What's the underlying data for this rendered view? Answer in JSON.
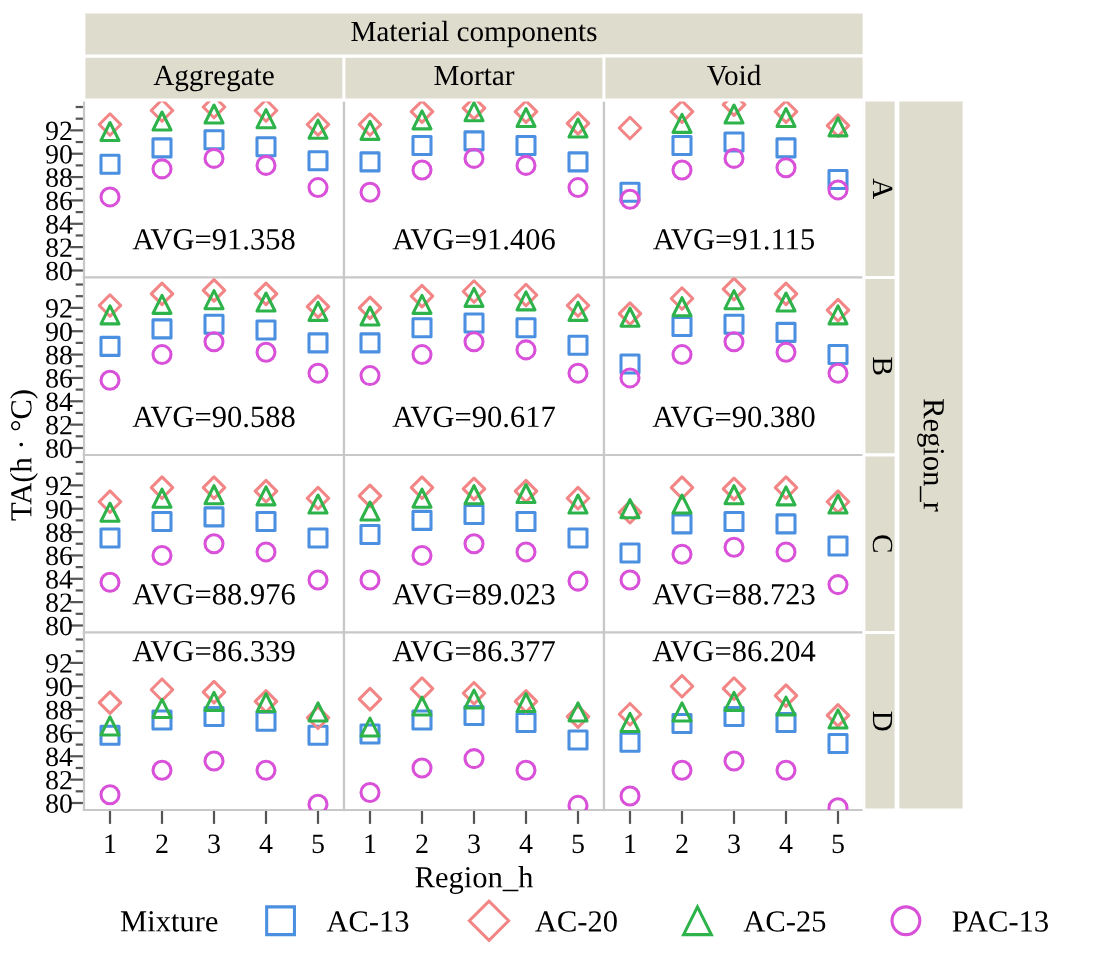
{
  "chart_data": [
    {
      "type": "scatter",
      "title": "Aggregate",
      "x": [
        1,
        2,
        3,
        4,
        5
      ],
      "xlim": [
        0.5,
        5.5
      ],
      "xticks": [
        1,
        2,
        3,
        4,
        5
      ],
      "ylim": [
        79.4,
        94.6
      ],
      "yticks": [
        80,
        {
          "value": 81,
          "label": null
        },
        82,
        {
          "value": 83,
          "label": null
        },
        84,
        {
          "value": 85,
          "label": null
        },
        86,
        {
          "value": 87,
          "label": null
        },
        88,
        {
          "value": 89,
          "label": null
        },
        90,
        {
          "value": 91,
          "label": null
        },
        92,
        {
          "value": 93,
          "label": null
        },
        {
          "value": 94,
          "label": null
        }
      ],
      "tick_labels": "y",
      "annotations": [
        "AVG=91.358"
      ],
      "ylabel": "TA(h · °C)",
      "legend": "bottom",
      "legend_title": "Mixture",
      "series": [
        {
          "name": "AC-13",
          "color": "#4a8fe0",
          "marker": "square",
          "values": [
            89.1,
            90.5,
            91.2,
            90.6,
            89.4
          ]
        },
        {
          "name": "AC-20",
          "color": "#f28585",
          "marker": "diamond",
          "values": [
            92.5,
            93.7,
            94.0,
            93.7,
            92.5
          ]
        },
        {
          "name": "AC-25",
          "color": "#2db34a",
          "marker": "triangle",
          "values": [
            91.9,
            92.8,
            93.4,
            93.0,
            92.1
          ]
        },
        {
          "name": "PAC-13",
          "color": "#d950d9",
          "marker": "circle",
          "values": [
            86.3,
            88.7,
            89.6,
            89.0,
            87.1
          ]
        }
      ]
    },
    {
      "type": "scatter",
      "title": "Mortar",
      "subtitle": "Material components",
      "x": [
        1,
        2,
        3,
        4,
        5
      ],
      "xlim": [
        0.5,
        5.5
      ],
      "xticks": [
        1,
        2,
        3,
        4,
        5
      ],
      "ylim": [
        79.4,
        94.6
      ],
      "yticks": [
        80,
        82,
        84,
        86,
        88,
        90,
        92
      ],
      "tick_labels": false,
      "annotations": [
        "AVG=91.406"
      ],
      "series": [
        {
          "color": "#4a8fe0",
          "marker": "square",
          "values": [
            89.3,
            90.7,
            91.1,
            90.7,
            89.3
          ]
        },
        {
          "color": "#f28585",
          "marker": "diamond",
          "values": [
            92.5,
            93.6,
            93.9,
            93.6,
            92.6
          ]
        },
        {
          "color": "#2db34a",
          "marker": "triangle",
          "values": [
            92.0,
            92.9,
            93.6,
            93.1,
            92.2
          ]
        },
        {
          "color": "#d950d9",
          "marker": "circle",
          "values": [
            86.7,
            88.6,
            89.6,
            89.0,
            87.1
          ]
        }
      ]
    },
    {
      "type": "scatter",
      "title": "Void",
      "y2label": "A",
      "x": [
        1,
        2,
        3,
        4,
        5
      ],
      "xlim": [
        0.5,
        5.5
      ],
      "xticks": [
        1,
        2,
        3,
        4,
        5
      ],
      "ylim": [
        79.4,
        94.6
      ],
      "yticks": [
        80,
        82,
        84,
        86,
        88,
        90,
        92
      ],
      "tick_labels": false,
      "annotations": [
        "AVG=91.115"
      ],
      "series": [
        {
          "color": "#4a8fe0",
          "marker": "square",
          "values": [
            86.7,
            90.7,
            91.0,
            90.5,
            87.8
          ]
        },
        {
          "color": "#f28585",
          "marker": "diamond",
          "values": [
            92.2,
            93.6,
            94.2,
            93.6,
            92.4
          ]
        },
        {
          "color": "#2db34a",
          "marker": "triangle",
          "values": [
            null,
            92.6,
            93.4,
            93.1,
            92.3
          ]
        },
        {
          "color": "#d950d9",
          "marker": "circle",
          "values": [
            86.1,
            88.6,
            89.6,
            88.8,
            86.9
          ]
        }
      ]
    },
    {
      "type": "scatter",
      "x": [
        1,
        2,
        3,
        4,
        5
      ],
      "xlim": [
        0.5,
        5.5
      ],
      "xticks": [
        1,
        2,
        3,
        4,
        5
      ],
      "ylim": [
        79.4,
        94.6
      ],
      "yticks": [
        80,
        {
          "value": 81,
          "label": null
        },
        82,
        {
          "value": 83,
          "label": null
        },
        84,
        {
          "value": 85,
          "label": null
        },
        86,
        {
          "value": 87,
          "label": null
        },
        88,
        {
          "value": 89,
          "label": null
        },
        90,
        {
          "value": 91,
          "label": null
        },
        92,
        {
          "value": 93,
          "label": null
        },
        {
          "value": 94,
          "label": null
        }
      ],
      "tick_labels": "y",
      "annotations": [
        "AVG=90.588"
      ],
      "series": [
        {
          "color": "#4a8fe0",
          "marker": "square",
          "values": [
            88.7,
            90.2,
            90.6,
            90.1,
            89.0
          ]
        },
        {
          "color": "#f28585",
          "marker": "diamond",
          "values": [
            92.2,
            93.2,
            93.5,
            93.2,
            92.1
          ]
        },
        {
          "color": "#2db34a",
          "marker": "triangle",
          "values": [
            91.4,
            92.3,
            92.7,
            92.5,
            91.7
          ]
        },
        {
          "color": "#d950d9",
          "marker": "circle",
          "values": [
            85.8,
            88.0,
            89.1,
            88.2,
            86.4
          ]
        }
      ]
    },
    {
      "type": "scatter",
      "x": [
        1,
        2,
        3,
        4,
        5
      ],
      "xlim": [
        0.5,
        5.5
      ],
      "xticks": [
        1,
        2,
        3,
        4,
        5
      ],
      "ylim": [
        79.4,
        94.6
      ],
      "yticks": [
        80,
        82,
        84,
        86,
        88,
        90,
        92
      ],
      "tick_labels": false,
      "annotations": [
        "AVG=90.617"
      ],
      "series": [
        {
          "color": "#4a8fe0",
          "marker": "square",
          "values": [
            89.0,
            90.3,
            90.7,
            90.3,
            88.8
          ]
        },
        {
          "color": "#f28585",
          "marker": "diamond",
          "values": [
            92.0,
            93.0,
            93.4,
            93.1,
            92.2
          ]
        },
        {
          "color": "#2db34a",
          "marker": "triangle",
          "values": [
            91.3,
            92.3,
            92.9,
            92.6,
            91.7
          ]
        },
        {
          "color": "#d950d9",
          "marker": "circle",
          "values": [
            86.2,
            88.0,
            89.1,
            88.4,
            86.4
          ]
        }
      ]
    },
    {
      "type": "scatter",
      "y2label": "B",
      "x": [
        1,
        2,
        3,
        4,
        5
      ],
      "xlim": [
        0.5,
        5.5
      ],
      "xticks": [
        1,
        2,
        3,
        4,
        5
      ],
      "ylim": [
        79.4,
        94.6
      ],
      "yticks": [
        80,
        82,
        84,
        86,
        88,
        90,
        92
      ],
      "tick_labels": false,
      "annotations": [
        "AVG=90.380",
        "Region_r"
      ],
      "series": [
        {
          "color": "#4a8fe0",
          "marker": "square",
          "values": [
            87.2,
            90.4,
            90.6,
            89.9,
            88.0
          ]
        },
        {
          "color": "#f28585",
          "marker": "diamond",
          "values": [
            91.5,
            92.8,
            93.6,
            93.2,
            91.8
          ]
        },
        {
          "color": "#2db34a",
          "marker": "triangle",
          "values": [
            91.2,
            92.1,
            92.7,
            92.5,
            91.4
          ]
        },
        {
          "color": "#d950d9",
          "marker": "circle",
          "values": [
            86.0,
            88.0,
            89.1,
            88.2,
            86.4
          ]
        }
      ]
    },
    {
      "type": "scatter",
      "x": [
        1,
        2,
        3,
        4,
        5
      ],
      "xlim": [
        0.5,
        5.5
      ],
      "xticks": [
        1,
        2,
        3,
        4,
        5
      ],
      "ylim": [
        79.4,
        94.6
      ],
      "yticks": [
        80,
        {
          "value": 81,
          "label": null
        },
        82,
        {
          "value": 83,
          "label": null
        },
        84,
        {
          "value": 85,
          "label": null
        },
        86,
        {
          "value": 87,
          "label": null
        },
        88,
        {
          "value": 89,
          "label": null
        },
        90,
        {
          "value": 91,
          "label": null
        },
        92,
        {
          "value": 93,
          "label": null
        },
        {
          "value": 94,
          "label": null
        }
      ],
      "tick_labels": "y",
      "annotations": [
        "AVG=88.976"
      ],
      "series": [
        {
          "color": "#4a8fe0",
          "marker": "square",
          "values": [
            87.5,
            88.9,
            89.3,
            88.9,
            87.5
          ]
        },
        {
          "color": "#f28585",
          "marker": "diamond",
          "values": [
            90.6,
            91.8,
            91.8,
            91.5,
            90.9
          ]
        },
        {
          "color": "#2db34a",
          "marker": "triangle",
          "values": [
            89.7,
            90.9,
            91.2,
            91.1,
            90.4
          ]
        },
        {
          "color": "#d950d9",
          "marker": "circle",
          "values": [
            83.7,
            86.0,
            87.0,
            86.3,
            83.9
          ]
        }
      ]
    },
    {
      "type": "scatter",
      "x": [
        1,
        2,
        3,
        4,
        5
      ],
      "xlim": [
        0.5,
        5.5
      ],
      "xticks": [
        1,
        2,
        3,
        4,
        5
      ],
      "ylim": [
        79.4,
        94.6
      ],
      "yticks": [
        80,
        82,
        84,
        86,
        88,
        90,
        92
      ],
      "tick_labels": false,
      "annotations": [
        "AVG=89.023"
      ],
      "series": [
        {
          "color": "#4a8fe0",
          "marker": "square",
          "values": [
            87.8,
            89.0,
            89.5,
            88.9,
            87.5
          ]
        },
        {
          "color": "#f28585",
          "marker": "diamond",
          "values": [
            91.1,
            91.8,
            91.7,
            91.5,
            90.9
          ]
        },
        {
          "color": "#2db34a",
          "marker": "triangle",
          "values": [
            89.8,
            90.9,
            91.2,
            91.3,
            90.4
          ]
        },
        {
          "color": "#d950d9",
          "marker": "circle",
          "values": [
            83.9,
            86.0,
            87.0,
            86.3,
            83.8
          ]
        }
      ]
    },
    {
      "type": "scatter",
      "y2label": "C",
      "x": [
        1,
        2,
        3,
        4,
        5
      ],
      "xlim": [
        0.5,
        5.5
      ],
      "xticks": [
        1,
        2,
        3,
        4,
        5
      ],
      "ylim": [
        79.4,
        94.6
      ],
      "yticks": [
        80,
        82,
        84,
        86,
        88,
        90,
        92
      ],
      "tick_labels": false,
      "annotations": [
        "AVG=88.723"
      ],
      "series": [
        {
          "color": "#4a8fe0",
          "marker": "square",
          "values": [
            86.2,
            88.7,
            88.9,
            88.7,
            86.8
          ]
        },
        {
          "color": "#f28585",
          "marker": "diamond",
          "values": [
            89.7,
            91.8,
            91.7,
            91.8,
            90.6
          ]
        },
        {
          "color": "#2db34a",
          "marker": "triangle",
          "values": [
            90.0,
            90.4,
            91.2,
            91.1,
            90.4
          ]
        },
        {
          "color": "#d950d9",
          "marker": "circle",
          "values": [
            83.9,
            86.1,
            86.7,
            86.3,
            83.5
          ]
        }
      ]
    },
    {
      "type": "scatter",
      "x": [
        1,
        2,
        3,
        4,
        5
      ],
      "xlim": [
        0.5,
        5.5
      ],
      "xticks": [
        1,
        2,
        3,
        4,
        5
      ],
      "ylim": [
        79.4,
        94.6
      ],
      "yticks": [
        80,
        {
          "value": 81,
          "label": null
        },
        82,
        {
          "value": 83,
          "label": null
        },
        84,
        {
          "value": 85,
          "label": null
        },
        86,
        {
          "value": 87,
          "label": null
        },
        88,
        {
          "value": 89,
          "label": null
        },
        90,
        {
          "value": 91,
          "label": null
        },
        92,
        {
          "value": 93,
          "label": null
        },
        {
          "value": 94,
          "label": null
        }
      ],
      "annotations": [
        "AVG=86.339"
      ],
      "series": [
        {
          "color": "#4a8fe0",
          "marker": "square",
          "values": [
            85.8,
            87.1,
            87.4,
            87.0,
            85.8
          ]
        },
        {
          "color": "#f28585",
          "marker": "diamond",
          "values": [
            88.6,
            89.7,
            89.5,
            88.7,
            87.3
          ]
        },
        {
          "color": "#2db34a",
          "marker": "triangle",
          "values": [
            86.6,
            88.1,
            88.7,
            88.6,
            87.8
          ]
        },
        {
          "color": "#d950d9",
          "marker": "circle",
          "values": [
            80.7,
            82.8,
            83.6,
            82.8,
            79.9
          ]
        }
      ]
    },
    {
      "type": "scatter",
      "xlabel": "Region_h",
      "x": [
        1,
        2,
        3,
        4,
        5
      ],
      "xlim": [
        0.5,
        5.5
      ],
      "xticks": [
        1,
        2,
        3,
        4,
        5
      ],
      "ylim": [
        79.4,
        94.6
      ],
      "yticks": [
        80,
        82,
        84,
        86,
        88,
        90,
        92
      ],
      "tick_labels": "x",
      "annotations": [
        "AVG=86.377"
      ],
      "series": [
        {
          "color": "#4a8fe0",
          "marker": "square",
          "values": [
            85.9,
            87.1,
            87.5,
            86.9,
            85.4
          ]
        },
        {
          "color": "#f28585",
          "marker": "diamond",
          "values": [
            88.9,
            89.8,
            89.4,
            88.7,
            87.4
          ]
        },
        {
          "color": "#2db34a",
          "marker": "triangle",
          "values": [
            86.5,
            88.3,
            88.9,
            88.6,
            87.8
          ]
        },
        {
          "color": "#d950d9",
          "marker": "circle",
          "values": [
            80.9,
            83.0,
            83.8,
            82.8,
            79.8
          ]
        }
      ]
    },
    {
      "type": "scatter",
      "y2label": "D",
      "x": [
        1,
        2,
        3,
        4,
        5
      ],
      "xlim": [
        0.5,
        5.5
      ],
      "xticks": [
        1,
        2,
        3,
        4,
        5
      ],
      "ylim": [
        79.4,
        94.6
      ],
      "yticks": [
        80,
        82,
        84,
        86,
        88,
        90,
        92
      ],
      "tick_labels": "x",
      "annotations": [
        "AVG=86.204"
      ],
      "series": [
        {
          "color": "#4a8fe0",
          "marker": "square",
          "values": [
            85.2,
            86.8,
            87.4,
            86.9,
            85.1
          ]
        },
        {
          "color": "#f28585",
          "marker": "diamond",
          "values": [
            87.6,
            90.0,
            89.8,
            89.2,
            87.5
          ]
        },
        {
          "color": "#2db34a",
          "marker": "triangle",
          "values": [
            86.9,
            87.8,
            88.7,
            88.3,
            87.2
          ]
        },
        {
          "color": "#d950d9",
          "marker": "circle",
          "values": [
            80.6,
            82.8,
            83.6,
            82.8,
            79.6
          ]
        }
      ]
    }
  ]
}
